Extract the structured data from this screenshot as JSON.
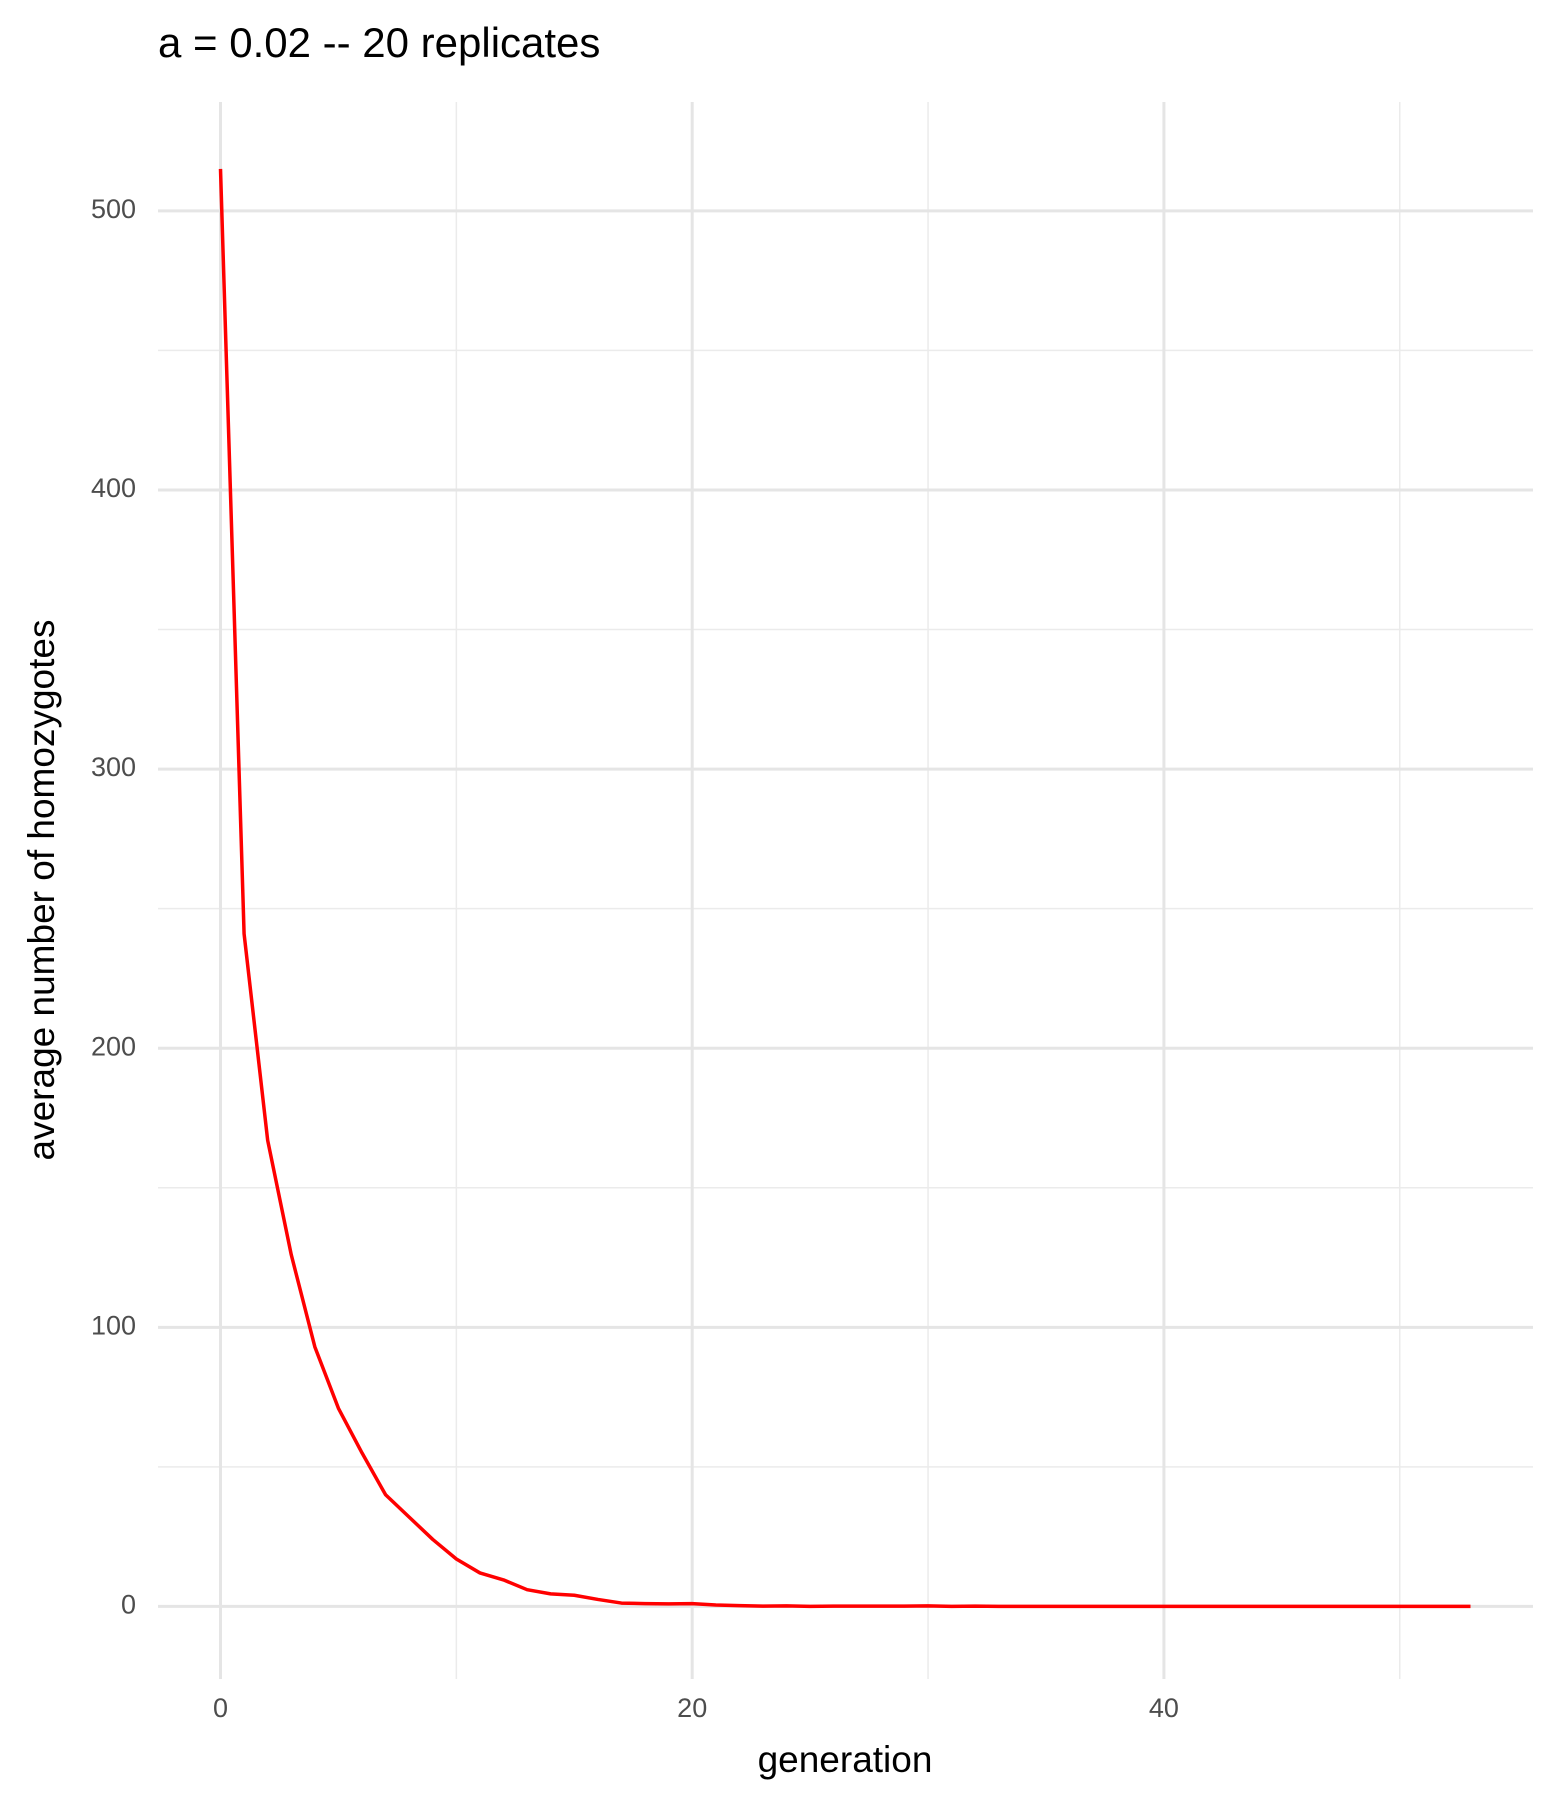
{
  "chart_data": {
    "type": "line",
    "title": "a = 0.02 -- 20 replicates",
    "x_label": "generation",
    "y_label": "average number of homozygotes",
    "x": [
      0,
      1,
      2,
      3,
      4,
      5,
      6,
      7,
      8,
      9,
      10,
      11,
      12,
      13,
      14,
      15,
      16,
      17,
      18,
      19,
      20,
      21,
      22,
      23,
      24,
      25,
      26,
      27,
      28,
      29,
      30,
      31,
      32,
      33,
      34,
      35,
      36,
      37,
      38,
      39,
      40,
      41,
      42,
      43,
      44,
      45,
      46,
      47,
      48,
      49,
      50,
      51,
      52,
      53
    ],
    "series": [
      {
        "name": "homozygotes",
        "color": "#ff0000",
        "values": [
          515,
          241,
          167,
          126,
          93,
          71,
          55,
          40,
          32,
          24,
          17,
          12,
          9.5,
          6,
          4.5,
          4,
          2.5,
          1.2,
          1,
          0.9,
          1,
          0.5,
          0.3,
          0.1,
          0.2,
          0,
          0.1,
          0.1,
          0.1,
          0.1,
          0.2,
          0,
          0.1,
          0,
          0,
          0,
          0,
          0,
          0,
          0,
          0,
          0,
          0,
          0,
          0,
          0,
          0,
          0,
          0,
          0,
          0,
          0,
          0,
          0
        ]
      }
    ],
    "xlim": [
      -2.65,
      55.65
    ],
    "ylim": [
      -26,
      539
    ],
    "xticks": [
      0,
      20,
      40
    ],
    "yticks": [
      0,
      100,
      200,
      300,
      400,
      500
    ],
    "x_minor_ticks": [
      10,
      30,
      50
    ],
    "y_minor_ticks": [
      50,
      150,
      250,
      350,
      450
    ],
    "grid": true
  }
}
